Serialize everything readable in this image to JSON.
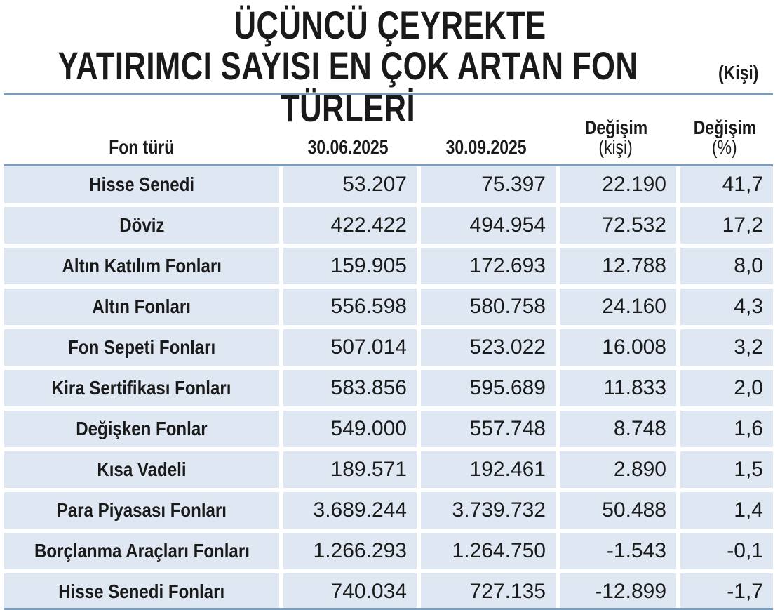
{
  "title_line1": "ÜÇÜNCÜ ÇEYREKTE",
  "title_line2": "YATIRIMCI SAYISI EN ÇOK ARTAN FON TÜRLERİ",
  "unit": "(Kişi)",
  "headers": {
    "fund_type": "Fon türü",
    "date1": "30.06.2025",
    "date2": "30.09.2025",
    "change_people_1": "Değişim",
    "change_people_2": "(kişi)",
    "change_pct_1": "Değişim",
    "change_pct_2": "(%)"
  },
  "colors": {
    "row_bg": "#dfe8f2",
    "rule": "#7a9cbd",
    "text": "#1a1a1a"
  },
  "chart_data": {
    "type": "table",
    "columns": [
      "Fon türü",
      "30.06.2025",
      "30.09.2025",
      "Değişim (kişi)",
      "Değişim (%)"
    ],
    "rows": [
      [
        "Hisse Senedi",
        "53.207",
        "75.397",
        "22.190",
        "41,7"
      ],
      [
        "Döviz",
        "422.422",
        "494.954",
        "72.532",
        "17,2"
      ],
      [
        "Altın Katılım Fonları",
        "159.905",
        "172.693",
        "12.788",
        "8,0"
      ],
      [
        "Altın Fonları",
        "556.598",
        "580.758",
        "24.160",
        "4,3"
      ],
      [
        "Fon Sepeti Fonları",
        "507.014",
        "523.022",
        "16.008",
        "3,2"
      ],
      [
        "Kira Sertifikası Fonları",
        "583.856",
        "595.689",
        "11.833",
        "2,0"
      ],
      [
        "Değişken Fonlar",
        "549.000",
        "557.748",
        "8.748",
        "1,6"
      ],
      [
        "Kısa Vadeli",
        "189.571",
        "192.461",
        "2.890",
        "1,5"
      ],
      [
        "Para Piyasası Fonları",
        "3.689.244",
        "3.739.732",
        "50.488",
        "1,4"
      ],
      [
        "Borçlanma Araçları Fonları",
        "1.266.293",
        "1.264.750",
        "-1.543",
        "-0,1"
      ],
      [
        "Hisse Senedi Fonları",
        "740.034",
        "727.135",
        "-12.899",
        "-1,7"
      ]
    ]
  }
}
